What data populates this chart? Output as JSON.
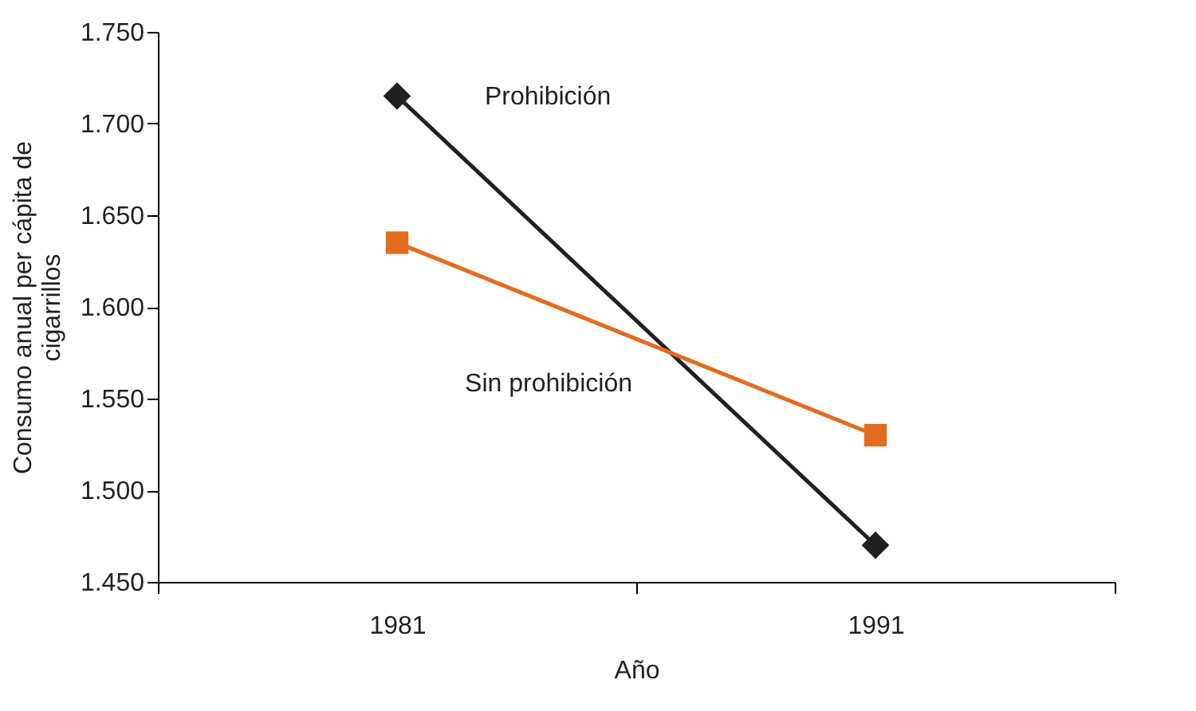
{
  "chart_data": {
    "type": "line",
    "xlabel": "Año",
    "ylabel": "Consumo anual per cápita de cigarrillos",
    "categories": [
      "1981",
      "1991"
    ],
    "series": [
      {
        "name": "Prohibición",
        "color": "#231f20",
        "marker": "diamond",
        "values": [
          1715,
          1470
        ]
      },
      {
        "name": "Sin prohibición",
        "color": "#e36c1f",
        "marker": "square",
        "values": [
          1635,
          1530
        ]
      }
    ],
    "ylim": [
      1450,
      1750
    ],
    "yticks": [
      {
        "value": 1450,
        "label": "1.450"
      },
      {
        "value": 1500,
        "label": "1.500"
      },
      {
        "value": 1550,
        "label": "1.550"
      },
      {
        "value": 1600,
        "label": "1.600"
      },
      {
        "value": 1650,
        "label": "1.650"
      },
      {
        "value": 1700,
        "label": "1.700"
      },
      {
        "value": 1750,
        "label": "1.750"
      }
    ],
    "grid": false,
    "legend": false
  }
}
